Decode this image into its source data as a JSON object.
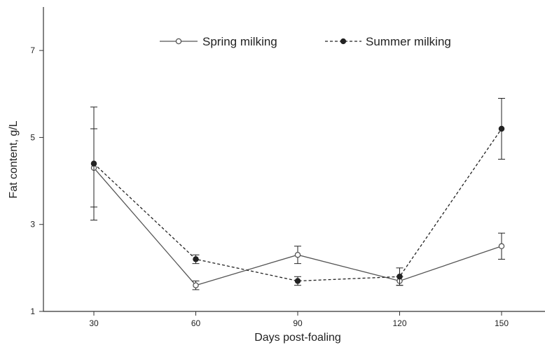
{
  "chart_data": {
    "type": "line",
    "title": "",
    "xlabel": "Days post-foaling",
    "ylabel": "Fat content, g/L",
    "x": [
      30,
      60,
      90,
      120,
      150
    ],
    "xticks": [
      "30",
      "60",
      "90",
      "120",
      "150"
    ],
    "yticks": [
      "1",
      "3",
      "5",
      "7"
    ],
    "ylim": [
      1,
      8.0
    ],
    "grid": false,
    "legend_position": "top",
    "series": [
      {
        "name": "Spring milking",
        "values": [
          4.3,
          1.6,
          2.3,
          1.7,
          2.5
        ],
        "error": [
          0.9,
          0.1,
          0.2,
          0.1,
          0.3
        ],
        "marker": "open-circle",
        "line_style": "solid",
        "color": "#555555"
      },
      {
        "name": "Summer milking",
        "values": [
          4.4,
          2.2,
          1.7,
          1.8,
          5.2
        ],
        "error": [
          1.3,
          0.1,
          0.1,
          0.2,
          0.7
        ],
        "marker": "filled-circle",
        "line_style": "dashed",
        "color": "#222222"
      }
    ]
  }
}
